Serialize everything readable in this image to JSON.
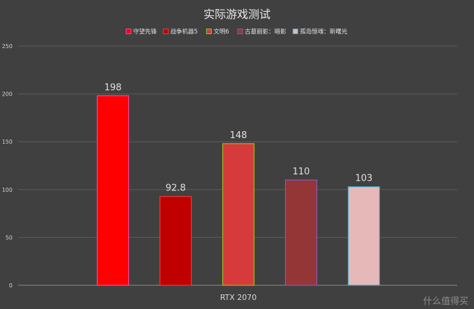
{
  "chart_data": {
    "type": "bar",
    "title": "实际游戏测试",
    "categories": [
      "RTX 2070"
    ],
    "series": [
      {
        "name": "守望先锋",
        "values": [
          198
        ],
        "color": "#ff0000",
        "border": "#f04aa0"
      },
      {
        "name": "战争机器5",
        "values": [
          92.8
        ],
        "color": "#c00000",
        "border": "#e04040"
      },
      {
        "name": "文明6",
        "values": [
          148
        ],
        "color": "#d63a3a",
        "border": "#a8b820"
      },
      {
        "name": "古墓丽影：暗影",
        "values": [
          110
        ],
        "color": "#943636",
        "border": "#8a5ab8"
      },
      {
        "name": "孤岛惊魂：新曙光",
        "values": [
          103
        ],
        "color": "#e6b8b8",
        "border": "#3aa8c8"
      }
    ],
    "data_labels": [
      "198",
      "92.8",
      "148",
      "110",
      "103"
    ],
    "ylim": [
      0,
      250
    ],
    "yticks": [
      0,
      50,
      100,
      150,
      200,
      250
    ],
    "xlabel": "",
    "ylabel": "",
    "grid": true,
    "legend_position": "top-center"
  },
  "watermark": "什么值得买"
}
